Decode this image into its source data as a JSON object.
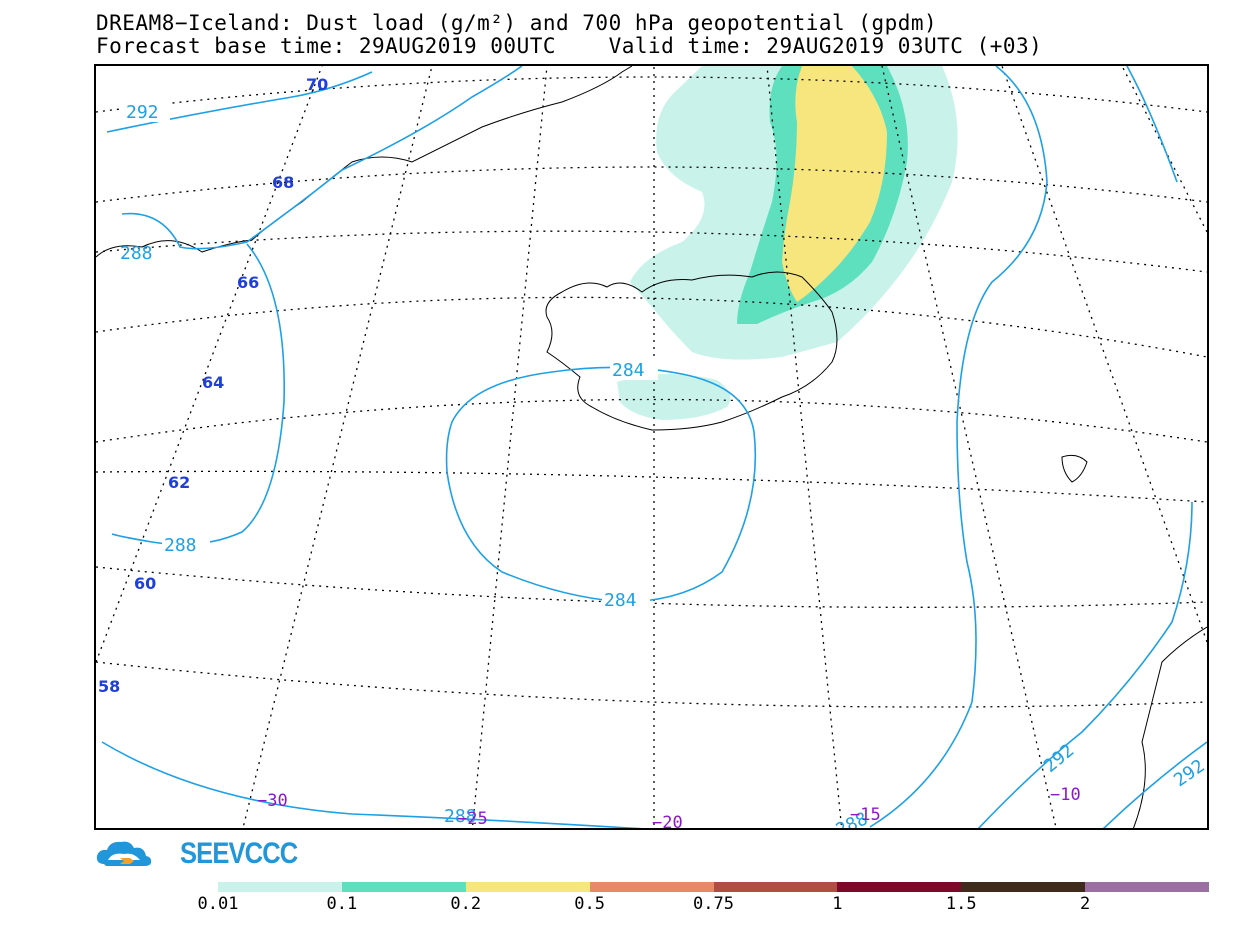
{
  "header": {
    "line1": "DREAM8−Iceland: Dust load (g/m²) and 700 hPa geopotential (gpdm)",
    "line2": "Forecast base time: 29AUG2019 00UTC    Valid time: 29AUG2019 03UTC (+03)"
  },
  "logo": {
    "text": "SEEVCCC",
    "icon": "cloud-logo-icon"
  },
  "geopotential_labels": [
    "292",
    "288",
    "288",
    "284",
    "284",
    "292",
    "288",
    "288",
    "292"
  ],
  "latitude_labels": [
    "70",
    "68",
    "66",
    "64",
    "62",
    "60",
    "58"
  ],
  "longitude_labels": [
    "−30",
    "−25",
    "−20",
    "−15",
    "−10"
  ],
  "colorbar": {
    "colors": [
      "#c8f2ea",
      "#5ee0bf",
      "#f7e67d",
      "#e88a66",
      "#b04e44",
      "#7d0a2a",
      "#3f2a1c",
      "#9c6fa3"
    ],
    "ticks": [
      "0.01",
      "0.1",
      "0.2",
      "0.5",
      "0.75",
      "1",
      "1.5",
      "2"
    ]
  },
  "colors": {
    "geopotential": "#1ea0e6",
    "latitude_label": "#1f3fd8",
    "longitude_label": "#8a19c8",
    "dust_light": "#c8f2ea",
    "dust_mid": "#5ee0bf",
    "dust_high": "#f7e67d"
  }
}
